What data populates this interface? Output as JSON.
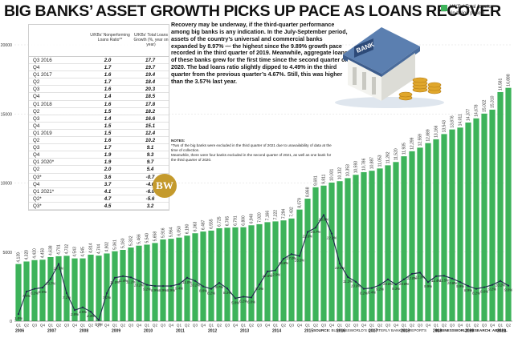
{
  "title": "BIG BANKS’ ASSET GROWTH PICKS UP PACE AS LOANS RECOVER",
  "legend": {
    "label": "U/KBs’ Total Assets",
    "sublabel": "(in billion pesos)",
    "color": "#3db35a"
  },
  "table": {
    "col_ratio": "U/KBs’ Nonperforming Loans Ratio**",
    "col_growth": "U/KBs’ Total Loans Growth (%, year on year)",
    "rows": [
      {
        "q": "Q3 2016",
        "ratio": "2.0",
        "growth": "17.7"
      },
      {
        "q": "Q4",
        "ratio": "1.7",
        "growth": "19.7"
      },
      {
        "q": "Q1 2017",
        "ratio": "1.6",
        "growth": "19.4"
      },
      {
        "q": "Q2",
        "ratio": "1.7",
        "growth": "18.4"
      },
      {
        "q": "Q3",
        "ratio": "1.6",
        "growth": "20.3"
      },
      {
        "q": "Q4",
        "ratio": "1.4",
        "growth": "18.5"
      },
      {
        "q": "Q1 2018",
        "ratio": "1.6",
        "growth": "17.8"
      },
      {
        "q": "Q2",
        "ratio": "1.5",
        "growth": "18.2"
      },
      {
        "q": "Q3",
        "ratio": "1.4",
        "growth": "16.6"
      },
      {
        "q": "Q4",
        "ratio": "1.5",
        "growth": "15.1"
      },
      {
        "q": "Q1 2019",
        "ratio": "1.5",
        "growth": "12.4"
      },
      {
        "q": "Q2",
        "ratio": "1.6",
        "growth": "10.2"
      },
      {
        "q": "Q3",
        "ratio": "1.7",
        "growth": "9.1"
      },
      {
        "q": "Q4",
        "ratio": "1.9",
        "growth": "9.3"
      },
      {
        "q": "Q1 2020*",
        "ratio": "1.9",
        "growth": "9.7"
      },
      {
        "q": "Q2",
        "ratio": "2.0",
        "growth": "5.4"
      },
      {
        "q": "Q3*",
        "ratio": "3.6",
        "growth": "-0.7"
      },
      {
        "q": "Q4",
        "ratio": "3.7",
        "growth": "-4.0"
      },
      {
        "q": "Q1 2021*",
        "ratio": "4.1",
        "growth": "-6.0"
      },
      {
        "q": "Q2*",
        "ratio": "4.7",
        "growth": "-5.6"
      },
      {
        "q": "Q3*",
        "ratio": "4.5",
        "growth": "3.2"
      }
    ]
  },
  "body_text": "Recovery may be underway, if the third-quarter performance among big banks is any indication. In the July-September period, assets of the country’s universal and commercial banks expanded by 8.97% — the highest since the 9.89% growth pace recorded in the third quarter of 2019. Meanwhile, aggregate loans of these banks grew for the first time since the second quarter of 2020. The bad loans ratio slightly dipped to 4.49% in the third quarter from the previous quarter’s 4.67%. Still, this was higher than the 3.57% last year.",
  "notes": {
    "heading": "NOTES:",
    "line1": "*Two of the big banks were excluded in the third quarter of 2021 due to unavailability of data at the time of collection.",
    "line2": "Meanwhile, there were four banks excluded in the second quarter of 2021, as well as one bank for the third quarter of 2020."
  },
  "logo_text": "BW",
  "bank_sign": "BANK",
  "source": {
    "label": "SOURCE:",
    "text": "BUSINESSWORLD’S QUARTERLY BANKING REPORTS",
    "credit": "BUSINESSWORLD RESEARCH: ABIGAIL"
  },
  "chart_data": {
    "type": "bar",
    "bar_color": "#3db35a",
    "line_color": "#1d2a4a",
    "ylim": [
      0,
      20000
    ],
    "yticks": [
      0,
      5000,
      10000,
      15000,
      20000
    ],
    "ylabel": "",
    "xlabel": "",
    "grid": true,
    "quarter_labels": [
      "Q1",
      "Q2",
      "Q3",
      "Q4",
      "Q1",
      "Q2",
      "Q3",
      "Q4",
      "Q1",
      "Q2",
      "Q3",
      "Q4",
      "Q1",
      "Q2",
      "Q3",
      "Q4",
      "Q1",
      "Q2",
      "Q3",
      "Q4",
      "Q1",
      "Q2",
      "Q3",
      "Q4",
      "Q1",
      "Q2",
      "Q3",
      "Q4",
      "Q1",
      "Q2",
      "Q3",
      "Q4",
      "Q1",
      "Q2",
      "Q3",
      "Q4",
      "Q1",
      "Q2",
      "Q3",
      "Q4",
      "Q1",
      "Q2",
      "Q3",
      "Q4",
      "Q1",
      "Q2",
      "Q3",
      "Q4",
      "Q1",
      "Q2",
      "Q3",
      "Q4",
      "Q1",
      "Q2",
      "Q3",
      "Q4",
      "Q1",
      "Q2",
      "Q3",
      "Q4",
      "Q1",
      "Q2"
    ],
    "years": [
      {
        "label": "2006",
        "start": 0
      },
      {
        "label": "2007",
        "start": 4
      },
      {
        "label": "2008",
        "start": 8
      },
      {
        "label": "2009",
        "start": 12
      },
      {
        "label": "2010",
        "start": 16
      },
      {
        "label": "2011",
        "start": 20
      },
      {
        "label": "2012",
        "start": 24
      },
      {
        "label": "2013",
        "start": 28
      },
      {
        "label": "2014",
        "start": 32
      },
      {
        "label": "2015",
        "start": 36
      },
      {
        "label": "2016",
        "start": 40
      },
      {
        "label": "2017",
        "start": 44
      },
      {
        "label": "2018",
        "start": 48
      },
      {
        "label": "2019",
        "start": 52
      },
      {
        "label": "2020",
        "start": 56
      },
      {
        "label": "2021",
        "start": 60
      }
    ],
    "series": [
      {
        "name": "U/KBs’ Total Assets",
        "labels": [
          "4,139",
          "4,320",
          "4,420",
          "4,450",
          "4,638",
          "4,701",
          "4,732",
          "4,543",
          "4,545",
          "4,814",
          "4,744",
          "4,902",
          "5,061",
          "5,160",
          "5,332",
          "5,466",
          "5,540",
          "5,658",
          "5,916",
          "5,964",
          "6,050",
          "6,190",
          "6,363",
          "6,487",
          "6,555",
          "6,725",
          "6,765",
          "6,791",
          "6,800",
          "6,940",
          "7,020",
          "7,166",
          "7,222",
          "7,294",
          "7,432",
          "8,079",
          "8,868",
          "9,691",
          "9,811",
          "10,031",
          "10,132",
          "10,353",
          "10,593",
          "10,786",
          "10,887",
          "11,053",
          "11,282",
          "11,520",
          "11,935",
          "12,299",
          "12,559",
          "12,889",
          "13,166",
          "13,543",
          "13,876",
          "14,011",
          "14,377",
          "14,678",
          "15,022",
          "15,310",
          "16,581",
          "16,888"
        ],
        "values": [
          4139,
          4320,
          4420,
          4450,
          4638,
          4701,
          4732,
          4543,
          4545,
          4814,
          4744,
          4902,
          5061,
          5160,
          5332,
          5466,
          5540,
          5658,
          5916,
          5964,
          6050,
          6190,
          6363,
          6487,
          6555,
          6725,
          6765,
          6791,
          6800,
          6940,
          7020,
          7166,
          7222,
          7294,
          7432,
          8079,
          8868,
          9691,
          9811,
          10031,
          10132,
          10353,
          10593,
          10786,
          10887,
          11053,
          11282,
          11520,
          11935,
          12299,
          12559,
          12889,
          13166,
          13543,
          13876,
          14011,
          14377,
          14678,
          15022,
          15310,
          16581,
          16888
        ]
      },
      {
        "name": "Total assets growth (%)",
        "values": [
          1.8,
          7.5,
          8.2,
          8.5,
          10.7,
          14.5,
          7.1,
          2.8,
          3.5,
          2.4,
          0.3,
          7.1,
          11.0,
          11.4,
          11.1,
          10.2,
          9.2,
          8.9,
          8.9,
          8.9,
          9.4,
          11.0,
          10.2,
          8.8,
          8.2,
          9.7,
          8.3,
          5.8,
          6.2,
          6.0,
          9.3,
          12.6,
          12.9,
          15.8,
          17.0,
          16.5,
          22.6,
          23.7,
          26.9,
          22.2,
          14.6,
          11.2,
          10.0,
          8.2,
          8.4,
          9.2,
          10.6,
          9.3,
          10.6,
          12.0,
          12.3,
          9.9,
          11.4,
          11.5,
          10.8,
          9.9,
          8.9,
          8.2,
          8.6,
          9.2,
          10.2,
          9.0
        ]
      }
    ],
    "growth_labels": [
      "1.8%",
      "7.5%",
      "8.2%",
      "8.5%",
      "10.7%",
      "14.5%",
      "7.1%",
      "2.8%",
      "3.5%",
      "2.4%",
      "0.3%",
      "7.1%",
      "11.0%",
      "11.4%",
      "11.1%",
      "10.2%",
      "9.2%",
      "8.9%",
      "8.9%",
      "8.9%",
      "9.4%",
      "11.0%",
      "10.2%",
      "8.8%",
      "8.2%",
      "9.7%",
      "8.3%",
      "5.8%",
      "6.2%",
      "6.0%",
      "9.3%",
      "12.6%",
      "12.9%",
      "15.8%",
      "17.0%",
      "16.5%",
      "22.6%",
      "23.7%",
      "26.9%",
      "22.2%",
      "14.6%",
      "11.2%",
      "10.0%",
      "8.2%",
      "8.4%",
      "9.2%",
      "10.6%",
      "9.3%",
      "10.6%",
      "12.0%",
      "12.3%",
      "9.9%",
      "11.4%",
      "11.5%",
      "10.8%",
      "9.9%",
      "8.9%",
      "8.2%",
      "8.6%",
      "9.2%",
      "10.2%",
      "9.0%"
    ]
  }
}
